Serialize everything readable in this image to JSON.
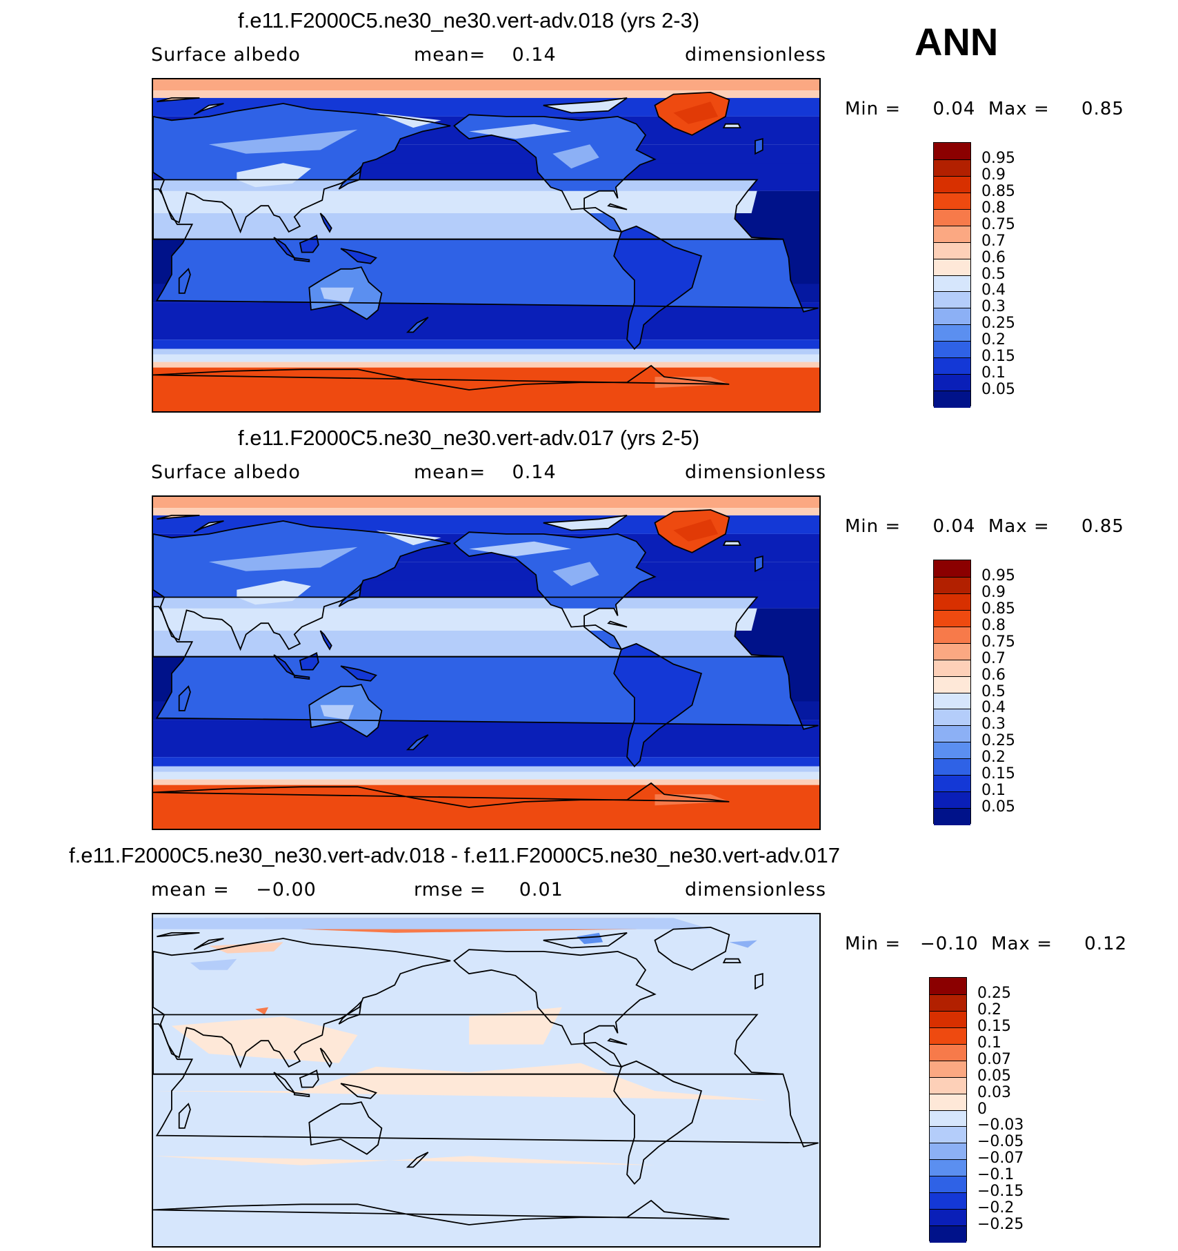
{
  "season_label": "ANN",
  "panels": [
    {
      "title": "f.e11.F2000C5.ne30_ne30.vert-adv.018 (yrs 2-3)",
      "left_label": "Surface albedo",
      "center_label": "mean=    0.14",
      "right_label": "dimensionless",
      "minmax": "Min =     0.04  Max =     0.85",
      "colorbar": {
        "labels": [
          "0.95",
          "0.9",
          "0.85",
          "0.8",
          "0.75",
          "0.7",
          "0.6",
          "0.5",
          "0.4",
          "0.3",
          "0.25",
          "0.2",
          "0.15",
          "0.1",
          "0.05"
        ],
        "colors": [
          "#8b0000",
          "#b22000",
          "#d83000",
          "#ee4a10",
          "#f77a4a",
          "#fba882",
          "#fdd0b8",
          "#fee8d8",
          "#d6e6fc",
          "#b4cdfa",
          "#8cb0f5",
          "#5b8ff0",
          "#2f62e6",
          "#1438d6",
          "#0a1fb8",
          "#00128a"
        ]
      },
      "map_theme": "albedo"
    },
    {
      "title": "f.e11.F2000C5.ne30_ne30.vert-adv.017 (yrs 2-5)",
      "left_label": "Surface albedo",
      "center_label": "mean=    0.14",
      "right_label": "dimensionless",
      "minmax": "Min =     0.04  Max =     0.85",
      "colorbar": {
        "labels": [
          "0.95",
          "0.9",
          "0.85",
          "0.8",
          "0.75",
          "0.7",
          "0.6",
          "0.5",
          "0.4",
          "0.3",
          "0.25",
          "0.2",
          "0.15",
          "0.1",
          "0.05"
        ],
        "colors": [
          "#8b0000",
          "#b22000",
          "#d83000",
          "#ee4a10",
          "#f77a4a",
          "#fba882",
          "#fdd0b8",
          "#fee8d8",
          "#d6e6fc",
          "#b4cdfa",
          "#8cb0f5",
          "#5b8ff0",
          "#2f62e6",
          "#1438d6",
          "#0a1fb8",
          "#00128a"
        ]
      },
      "map_theme": "albedo"
    },
    {
      "title": "f.e11.F2000C5.ne30_ne30.vert-adv.018 - f.e11.F2000C5.ne30_ne30.vert-adv.017",
      "left_label": "mean =    −0.00",
      "center_label": "rmse =     0.01",
      "right_label": "dimensionless",
      "minmax": "Min =   −0.10  Max =     0.12",
      "colorbar": {
        "labels": [
          "0.25",
          "0.2",
          "0.15",
          "0.1",
          "0.07",
          "0.05",
          "0.03",
          "0",
          "−0.03",
          "−0.05",
          "−0.07",
          "−0.1",
          "−0.15",
          "−0.2",
          "−0.25"
        ],
        "colors": [
          "#8b0000",
          "#b22000",
          "#d83000",
          "#ee4a10",
          "#f77a4a",
          "#fba882",
          "#fdd0b8",
          "#fee8d8",
          "#d6e6fc",
          "#b4cdfa",
          "#8cb0f5",
          "#5b8ff0",
          "#2f62e6",
          "#1438d6",
          "#0a1fb8",
          "#00128a"
        ]
      },
      "map_theme": "difference"
    }
  ]
}
